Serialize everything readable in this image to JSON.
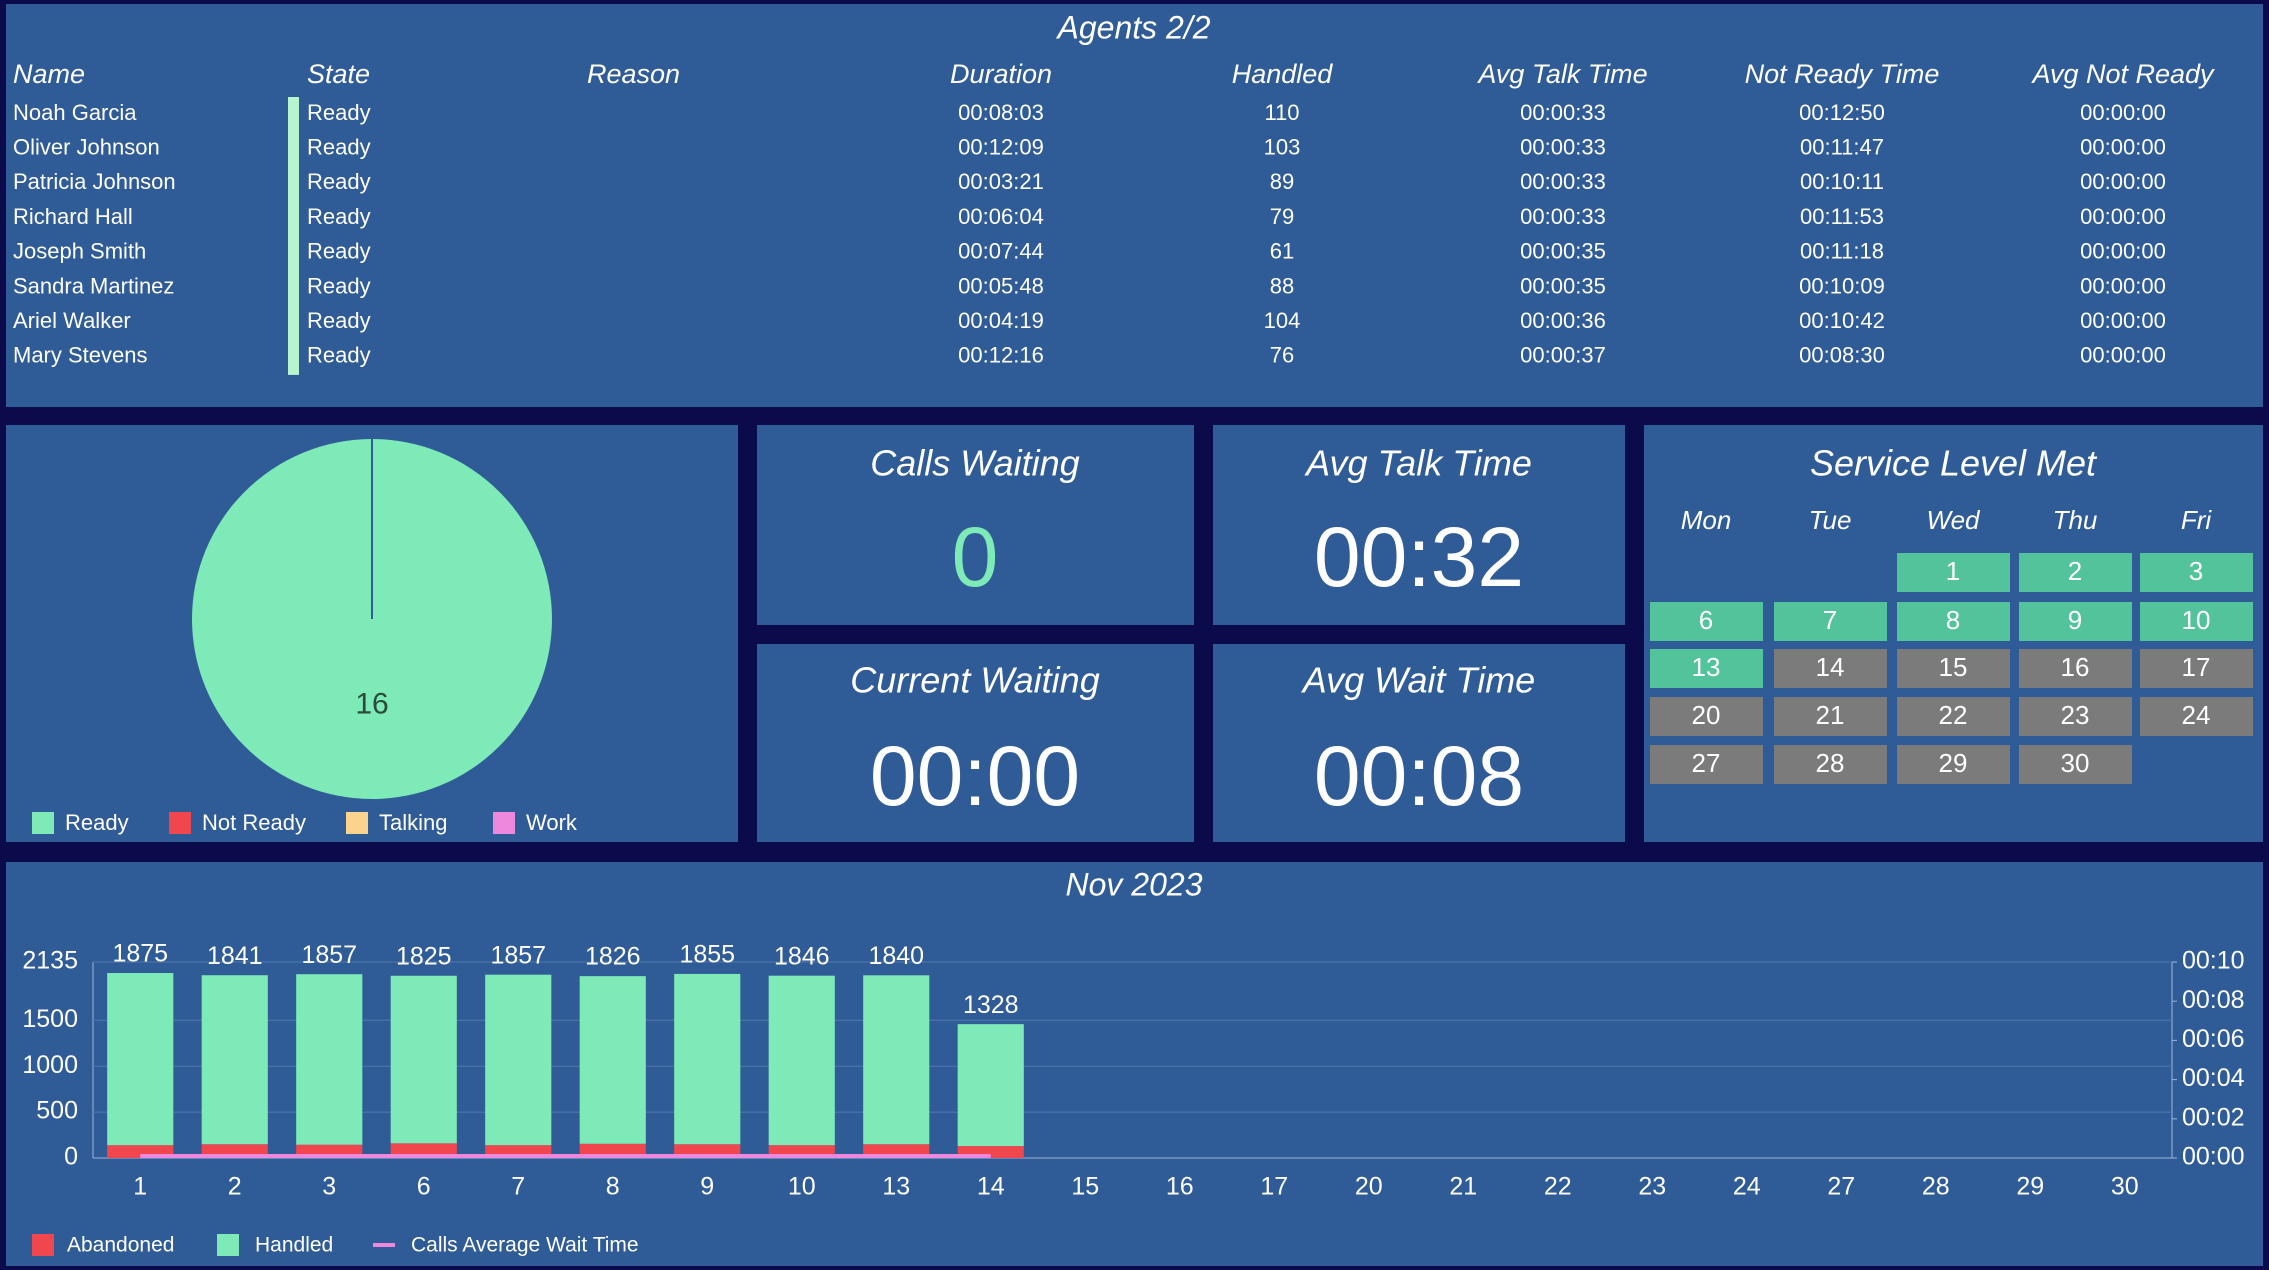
{
  "agents": {
    "title": "Agents 2/2",
    "columns": [
      "Name",
      "State",
      "Reason",
      "Duration",
      "Handled",
      "Avg Talk Time",
      "Not Ready Time",
      "Avg Not Ready"
    ],
    "rows": [
      {
        "name": "Noah Garcia",
        "state": "Ready",
        "duration": "00:08:03",
        "handled": 110,
        "avg_talk_time": "00:00:33",
        "not_ready_time": "00:12:50",
        "avg_not_ready": "00:00:00"
      },
      {
        "name": "Oliver Johnson",
        "state": "Ready",
        "duration": "00:12:09",
        "handled": 103,
        "avg_talk_time": "00:00:33",
        "not_ready_time": "00:11:47",
        "avg_not_ready": "00:00:00"
      },
      {
        "name": "Patricia Johnson",
        "state": "Ready",
        "duration": "00:03:21",
        "handled": 89,
        "avg_talk_time": "00:00:33",
        "not_ready_time": "00:10:11",
        "avg_not_ready": "00:00:00"
      },
      {
        "name": "Richard Hall",
        "state": "Ready",
        "duration": "00:06:04",
        "handled": 79,
        "avg_talk_time": "00:00:33",
        "not_ready_time": "00:11:53",
        "avg_not_ready": "00:00:00"
      },
      {
        "name": "Joseph Smith",
        "state": "Ready",
        "duration": "00:07:44",
        "handled": 61,
        "avg_talk_time": "00:00:35",
        "not_ready_time": "00:11:18",
        "avg_not_ready": "00:00:00"
      },
      {
        "name": "Sandra Martinez",
        "state": "Ready",
        "duration": "00:05:48",
        "handled": 88,
        "avg_talk_time": "00:00:35",
        "not_ready_time": "00:10:09",
        "avg_not_ready": "00:00:00"
      },
      {
        "name": "Ariel Walker",
        "state": "Ready",
        "duration": "00:04:19",
        "handled": 104,
        "avg_talk_time": "00:00:36",
        "not_ready_time": "00:10:42",
        "avg_not_ready": "00:00:00"
      },
      {
        "name": "Mary Stevens",
        "state": "Ready",
        "duration": "00:12:16",
        "handled": 76,
        "avg_talk_time": "00:00:37",
        "not_ready_time": "00:08:30",
        "avg_not_ready": "00:00:00"
      }
    ]
  },
  "pie": {
    "type": "pie",
    "categories": [
      "Ready",
      "Not Ready",
      "Talking",
      "Work"
    ],
    "values": [
      16,
      0,
      0,
      0
    ],
    "colors": [
      "#7eeab8",
      "#f0474f",
      "#fbd38d",
      "#ee88dd"
    ]
  },
  "tiles": [
    {
      "title": "Calls Waiting",
      "value": "0",
      "color": "#7eeab8"
    },
    {
      "title": "Avg Talk Time",
      "value": "00:32",
      "color": "#ffffff"
    },
    {
      "title": "Current Waiting",
      "value": "00:00",
      "color": "#ffffff"
    },
    {
      "title": "Avg Wait Time",
      "value": "00:08",
      "color": "#ffffff"
    }
  ],
  "service_level": {
    "title": "Service Level Met",
    "weekdays": [
      "Mon",
      "Tue",
      "Wed",
      "Thu",
      "Fri"
    ],
    "weeks": [
      [
        null,
        null,
        {
          "day": "1",
          "met": true
        },
        {
          "day": "2",
          "met": true
        },
        {
          "day": "3",
          "met": true
        }
      ],
      [
        {
          "day": "6",
          "met": true
        },
        {
          "day": "7",
          "met": true
        },
        {
          "day": "8",
          "met": true
        },
        {
          "day": "9",
          "met": true
        },
        {
          "day": "10",
          "met": true
        }
      ],
      [
        {
          "day": "13",
          "met": true
        },
        {
          "day": "14",
          "met": false
        },
        {
          "day": "15",
          "met": false
        },
        {
          "day": "16",
          "met": false
        },
        {
          "day": "17",
          "met": false
        }
      ],
      [
        {
          "day": "20",
          "met": false
        },
        {
          "day": "21",
          "met": false
        },
        {
          "day": "22",
          "met": false
        },
        {
          "day": "23",
          "met": false
        },
        {
          "day": "24",
          "met": false
        }
      ],
      [
        {
          "day": "27",
          "met": false
        },
        {
          "day": "28",
          "met": false
        },
        {
          "day": "29",
          "met": false
        },
        {
          "day": "30",
          "met": false
        },
        null
      ]
    ]
  },
  "chart_data": {
    "type": "bar",
    "title": "Nov 2023",
    "categories": [
      "1",
      "2",
      "3",
      "6",
      "7",
      "8",
      "9",
      "10",
      "13",
      "14",
      "15",
      "16",
      "17",
      "20",
      "21",
      "22",
      "23",
      "24",
      "27",
      "28",
      "29",
      "30"
    ],
    "series": [
      {
        "name": "Abandoned",
        "color": "#f0474f",
        "values": [
          140,
          150,
          145,
          160,
          140,
          155,
          150,
          140,
          150,
          130,
          null,
          null,
          null,
          null,
          null,
          null,
          null,
          null,
          null,
          null,
          null,
          null
        ]
      },
      {
        "name": "Handled",
        "color": "#7eeab8",
        "values": [
          1875,
          1841,
          1857,
          1825,
          1857,
          1826,
          1855,
          1846,
          1840,
          1328,
          null,
          null,
          null,
          null,
          null,
          null,
          null,
          null,
          null,
          null,
          null,
          null
        ]
      },
      {
        "name": "Calls Average Wait Time",
        "color": "#ee88dd",
        "type": "line",
        "axis": "y2",
        "values": [
          0.1,
          0.1,
          0.1,
          0.1,
          0.1,
          0.1,
          0.1,
          0.1,
          0.1,
          0.1,
          null,
          null,
          null,
          null,
          null,
          null,
          null,
          null,
          null,
          null,
          null,
          null
        ]
      }
    ],
    "ylim": [
      0,
      2135
    ],
    "yticks": [
      0,
      500,
      1000,
      1500,
      2135
    ],
    "y2lim": [
      0,
      10
    ],
    "y2ticks": [
      {
        "value": 0,
        "label": "00:00"
      },
      {
        "value": 2,
        "label": "00:02"
      },
      {
        "value": 4,
        "label": "00:04"
      },
      {
        "value": 6,
        "label": "00:06"
      },
      {
        "value": 8,
        "label": "00:08"
      },
      {
        "value": 10,
        "label": "00:10"
      }
    ],
    "grid": true
  }
}
